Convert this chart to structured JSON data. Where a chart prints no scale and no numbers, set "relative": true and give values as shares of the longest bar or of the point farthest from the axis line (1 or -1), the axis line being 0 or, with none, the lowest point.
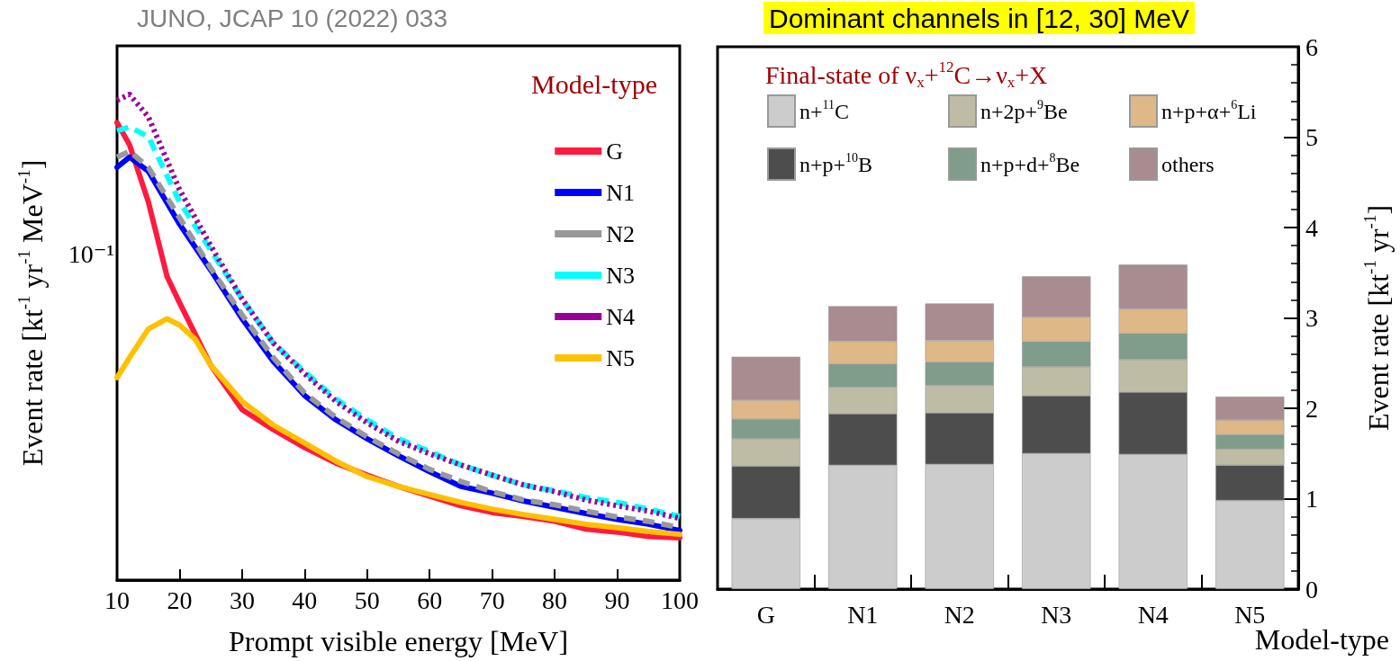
{
  "chart_data": [
    {
      "type": "line",
      "relative": true,
      "annotations": [
        "JUNO, JCAP 10 (2022) 033",
        "10⁻¹"
      ],
      "xlabel": "Prompt visible energy [MeV]",
      "ylabel": "Event rate [kt$^{-1}$ yr$^{-1}$ MeV$^{-1}$]",
      "legend_title": "Model-type",
      "legend": "top right",
      "marker": "none",
      "xlim": [
        10,
        100
      ],
      "xticks": [
        10,
        20,
        30,
        40,
        50,
        60,
        70,
        80,
        90,
        100
      ],
      "series": [
        {
          "name": "G",
          "color": "#ff1a40",
          "line_style": "solid",
          "x": [
            10,
            12,
            15,
            18,
            20,
            25,
            30,
            35,
            40,
            45,
            50,
            55,
            60,
            65,
            70,
            75,
            80,
            85,
            90,
            95,
            100
          ],
          "values": [
            0.942,
            0.896,
            0.779,
            0.625,
            0.571,
            0.442,
            0.351,
            0.31,
            0.273,
            0.241,
            0.216,
            0.193,
            0.173,
            0.153,
            0.139,
            0.131,
            0.121,
            0.105,
            0.0988,
            0.0896,
            0.0871
          ]
        },
        {
          "name": "N1",
          "color": "#0000ff",
          "line_style": "solid",
          "x": [
            10,
            12,
            15,
            20,
            25,
            30,
            35,
            40,
            45,
            50,
            55,
            60,
            65,
            70,
            75,
            80,
            85,
            90,
            95,
            100
          ],
          "values": [
            0.85,
            0.871,
            0.842,
            0.733,
            0.638,
            0.538,
            0.45,
            0.38,
            0.33,
            0.291,
            0.256,
            0.223,
            0.193,
            0.179,
            0.163,
            0.15,
            0.137,
            0.125,
            0.115,
            0.102
          ]
        },
        {
          "name": "N2",
          "color": "#999999",
          "line_style": "dashed",
          "x": [
            10,
            12,
            15,
            20,
            25,
            30,
            35,
            40,
            45,
            50,
            55,
            60,
            65,
            70,
            75,
            80,
            85,
            90,
            95,
            100
          ],
          "values": [
            0.871,
            0.883,
            0.85,
            0.746,
            0.642,
            0.546,
            0.458,
            0.385,
            0.335,
            0.295,
            0.26,
            0.228,
            0.203,
            0.182,
            0.165,
            0.155,
            0.142,
            0.13,
            0.121,
            0.108
          ]
        },
        {
          "name": "N3",
          "color": "#00ffff",
          "line_style": "dashed",
          "x": [
            10,
            12,
            15,
            20,
            25,
            30,
            35,
            40,
            45,
            50,
            55,
            60,
            65,
            70,
            75,
            80,
            85,
            90,
            95,
            100
          ],
          "values": [
            0.925,
            0.933,
            0.913,
            0.779,
            0.679,
            0.579,
            0.488,
            0.429,
            0.373,
            0.33,
            0.291,
            0.265,
            0.237,
            0.216,
            0.196,
            0.184,
            0.17,
            0.16,
            0.146,
            0.131
          ]
        },
        {
          "name": "N4",
          "color": "#990099",
          "line_style": "dotted",
          "x": [
            10,
            12,
            15,
            20,
            25,
            30,
            35,
            40,
            45,
            50,
            55,
            60,
            65,
            70,
            75,
            80,
            85,
            90,
            95,
            100
          ],
          "values": [
            0.988,
            1,
            0.954,
            0.804,
            0.688,
            0.579,
            0.488,
            0.425,
            0.368,
            0.324,
            0.286,
            0.26,
            0.237,
            0.216,
            0.196,
            0.182,
            0.165,
            0.153,
            0.142,
            0.127
          ]
        },
        {
          "name": "N5",
          "color": "#ffc000",
          "line_style": "solid",
          "x": [
            10,
            12,
            15,
            18,
            20,
            22.5,
            25,
            30,
            35,
            40,
            45,
            50,
            55,
            60,
            65,
            70,
            75,
            80,
            85,
            90,
            95,
            100
          ],
          "values": [
            0.417,
            0.458,
            0.517,
            0.538,
            0.525,
            0.496,
            0.442,
            0.368,
            0.319,
            0.282,
            0.245,
            0.213,
            0.193,
            0.176,
            0.16,
            0.146,
            0.135,
            0.125,
            0.115,
            0.108,
            0.1,
            0.0942
          ]
        }
      ]
    },
    {
      "type": "bar",
      "stacked": true,
      "title": "Dominant channels in [12, 30] MeV",
      "legend_title": "Final-state of ν$_{x}$+$^{12}$C→ν$_{x}$+X",
      "legend": "top left",
      "xlabel": "Model-type",
      "ylabel": "Event rate [kt$^{-1}$ yr$^{-1}$]",
      "categories": [
        "G",
        "N1",
        "N2",
        "N3",
        "N4",
        "N5"
      ],
      "ylim": [
        0,
        6
      ],
      "yticks": [
        0,
        1,
        2,
        3,
        4,
        5,
        6
      ],
      "series": [
        {
          "name": "n+$^{11}$C",
          "color": "#cccccc",
          "values": [
            0.78,
            1.37,
            1.38,
            1.5,
            1.49,
            0.98
          ]
        },
        {
          "name": "n+p+$^{10}$B",
          "color": "#4d4d4d",
          "values": [
            0.58,
            0.57,
            0.57,
            0.64,
            0.69,
            0.39
          ]
        },
        {
          "name": "n+2p+$^{9}$Be",
          "color": "#bfbca6",
          "values": [
            0.3,
            0.29,
            0.3,
            0.32,
            0.36,
            0.18
          ]
        },
        {
          "name": "n+p+d+$^{8}$Be",
          "color": "#809c8a",
          "values": [
            0.22,
            0.26,
            0.26,
            0.28,
            0.29,
            0.16
          ]
        },
        {
          "name": "n+p+α+$^{6}$Li",
          "color": "#deb887",
          "values": [
            0.21,
            0.25,
            0.24,
            0.27,
            0.27,
            0.16
          ]
        },
        {
          "name": "others",
          "color": "#a88c90",
          "values": [
            0.48,
            0.39,
            0.41,
            0.45,
            0.49,
            0.26
          ]
        }
      ]
    }
  ]
}
